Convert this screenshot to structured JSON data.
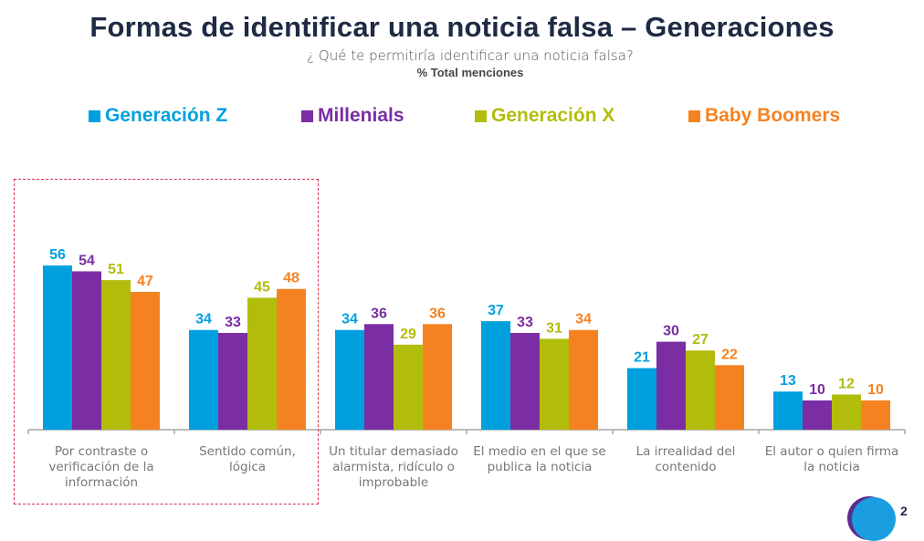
{
  "header": {
    "title": "Formas de identificar una noticia falsa – Generaciones",
    "question": "¿ Qué te permitiría identificar una noticia falsa?",
    "measure": "% Total menciones"
  },
  "legend": [
    {
      "label": "Generación Z",
      "color": "#00a0df"
    },
    {
      "label": "Millenials",
      "color": "#7b2da3"
    },
    {
      "label": "Generación X",
      "color": "#b2bd0b"
    },
    {
      "label": "Baby Boomers",
      "color": "#f58220"
    }
  ],
  "chart_data": {
    "type": "bar",
    "title": "Formas de identificar una noticia falsa – Generaciones",
    "subtitle": "¿ Qué te permitiría identificar una noticia falsa?",
    "ylabel": "% Total menciones",
    "xlabel": "",
    "ylim": [
      0,
      60
    ],
    "grid": false,
    "legend_position": "top",
    "categories": [
      [
        "Por contraste o",
        "verificación de la",
        "información"
      ],
      [
        "Sentido común,",
        "lógica"
      ],
      [
        "Un titular demasiado",
        "alarmista, ridículo o",
        "improbable"
      ],
      [
        "El medio en el que se",
        "publica la noticia"
      ],
      [
        "La irrealidad del",
        "contenido"
      ],
      [
        "El autor o quien firma",
        "la noticia"
      ]
    ],
    "series": [
      {
        "name": "Generación Z",
        "color": "#00a0df",
        "values": [
          56,
          34,
          34,
          37,
          21,
          13
        ]
      },
      {
        "name": "Millenials",
        "color": "#7b2da3",
        "values": [
          54,
          33,
          36,
          33,
          30,
          10
        ]
      },
      {
        "name": "Generación X",
        "color": "#b2bd0b",
        "values": [
          51,
          45,
          29,
          31,
          27,
          12
        ]
      },
      {
        "name": "Baby Boomers",
        "color": "#f58220",
        "values": [
          47,
          48,
          36,
          34,
          22,
          10
        ]
      }
    ],
    "highlighted_categories": [
      0,
      1
    ]
  },
  "logo": {
    "text": "2"
  }
}
